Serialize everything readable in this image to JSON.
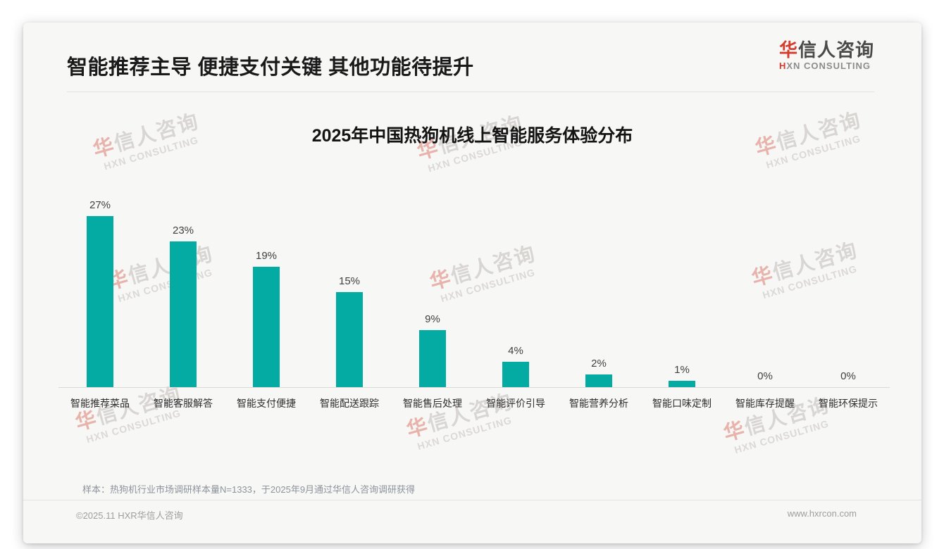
{
  "header": {
    "title": "智能推荐主导 便捷支付关键 其他功能待提升",
    "logo": {
      "cn_first": "华",
      "cn_rest": "信人咨询",
      "en_first": "H",
      "en_rest": "XN CONSULTING",
      "accent_color": "#d43c2e"
    }
  },
  "chart_data": {
    "type": "bar",
    "title": "2025年中国热狗机线上智能服务体验分布",
    "categories": [
      "智能推荐菜品",
      "智能客服解答",
      "智能支付便捷",
      "智能配送跟踪",
      "智能售后处理",
      "智能评价引导",
      "智能营养分析",
      "智能口味定制",
      "智能库存提醒",
      "智能环保提示"
    ],
    "values": [
      27,
      23,
      19,
      15,
      9,
      4,
      2,
      1,
      0,
      0
    ],
    "unit": "%",
    "bar_color": "#04aba2",
    "xlabel": "",
    "ylabel": "",
    "ylim": [
      0,
      30
    ],
    "grid": false,
    "legend_position": "none",
    "y_axis_visible": false,
    "value_labels_shown": true
  },
  "watermark": {
    "cn_first": "华",
    "cn_rest": "信人咨询",
    "en": "HXN CONSULTING"
  },
  "footnote": "样本：热狗机行业市场调研样本量N=1333，于2025年9月通过华信人咨询调研获得",
  "footer": {
    "left": "©2025.11 HXR华信人咨询",
    "right": "www.hxrcon.com"
  }
}
